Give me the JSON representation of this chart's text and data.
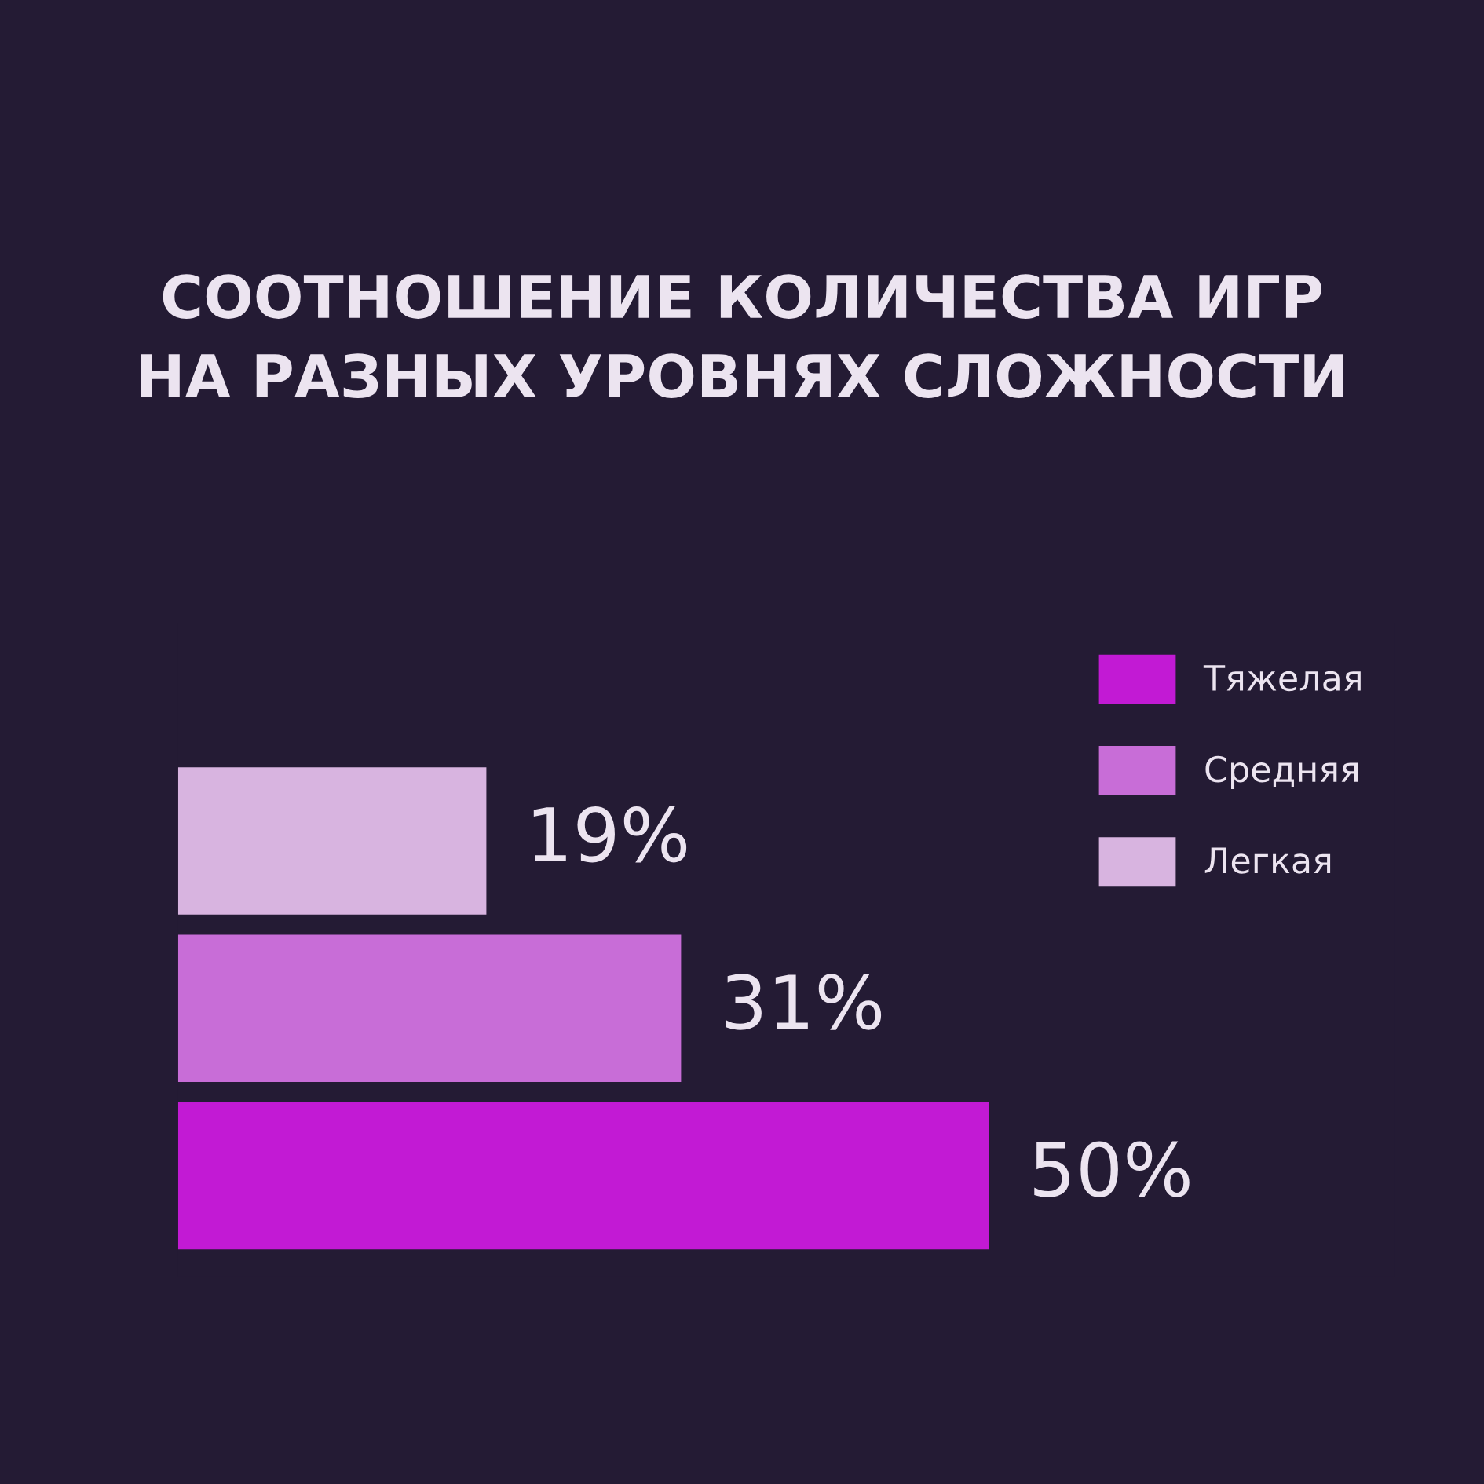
{
  "chart_data": {
    "type": "bar",
    "orientation": "horizontal",
    "stacked": true,
    "title": "СООТНОШЕНИЕ КОЛИЧЕСТВА ИГР\nНА РАЗНЫХ УРОВНЯХ СЛОЖНОСТИ",
    "categories": [
      null,
      null,
      null
    ],
    "series": [
      {
        "name": "Тяжелая",
        "color": "#c21ad4",
        "values": [
          null,
          null,
          50
        ],
        "value_labels": [
          null,
          null,
          "50%"
        ]
      },
      {
        "name": "Средняя",
        "color": "#c86dd7",
        "values": [
          null,
          31,
          null
        ],
        "value_labels": [
          null,
          "31%",
          null
        ]
      },
      {
        "name": "Легкая",
        "color": "#d8b4e0",
        "values": [
          19,
          null,
          null
        ],
        "value_labels": [
          "19%",
          null,
          null
        ]
      }
    ],
    "legend": "top right",
    "grid": false,
    "tick_labels": false
  }
}
